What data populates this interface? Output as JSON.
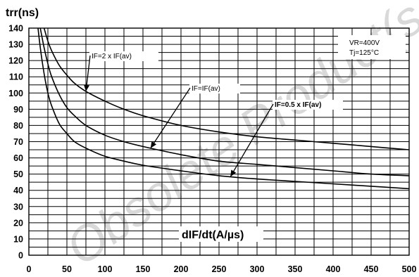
{
  "chart_data": {
    "type": "line",
    "ylabel": "trr(ns)",
    "xlabel": "dIF/dt(A/µs)",
    "xlim": [
      0,
      500
    ],
    "ylim": [
      0,
      140
    ],
    "x_ticks": [
      0,
      50,
      100,
      150,
      200,
      250,
      300,
      350,
      400,
      450,
      500
    ],
    "y_ticks": [
      0,
      10,
      20,
      30,
      40,
      50,
      60,
      70,
      80,
      90,
      100,
      110,
      120,
      130,
      140
    ],
    "x_grid_step": 25,
    "y_grid_step": 5,
    "grid": true,
    "conditions": [
      "VR=400V",
      "Tj=125°C"
    ],
    "watermark": "Obsolete Product(s)",
    "series": [
      {
        "name": "IF=2 x IF(av)",
        "x": [
          20,
          25,
          30,
          40,
          50,
          60,
          75,
          100,
          125,
          150,
          200,
          250,
          300,
          350,
          400,
          450,
          500
        ],
        "y": [
          140,
          132,
          126,
          117,
          111,
          106,
          101,
          95,
          90,
          86,
          80,
          76,
          73,
          71,
          69,
          67,
          65
        ]
      },
      {
        "name": "IF=IF(av)",
        "x": [
          15,
          20,
          25,
          30,
          40,
          50,
          60,
          75,
          100,
          125,
          150,
          200,
          250,
          300,
          350,
          400,
          450,
          500
        ],
        "y": [
          140,
          128,
          118,
          110,
          99,
          91,
          86,
          80,
          74,
          70,
          67,
          62,
          58,
          56,
          54,
          52,
          50,
          49
        ]
      },
      {
        "name": "IF=0.5 x IF(av)",
        "x": [
          12,
          15,
          20,
          25,
          30,
          40,
          50,
          60,
          75,
          100,
          125,
          150,
          200,
          250,
          300,
          350,
          400,
          450,
          500
        ],
        "y": [
          140,
          128,
          112,
          100,
          92,
          81,
          75,
          70,
          66,
          61,
          58,
          55.5,
          52,
          49,
          47,
          45.5,
          44,
          42.5,
          41
        ]
      }
    ],
    "annotations": [
      {
        "text": "IF=2 x IF(av)",
        "series": 0,
        "at_x": 75
      },
      {
        "text": "IF=IF(av)",
        "series": 1,
        "at_x": 160
      },
      {
        "text": "IF=0.5 x IF(av)",
        "series": 2,
        "at_x": 265
      }
    ]
  }
}
